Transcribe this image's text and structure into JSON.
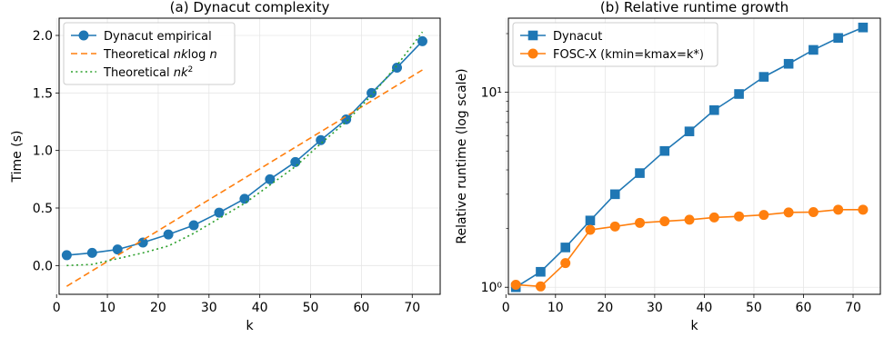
{
  "chart_data": [
    {
      "type": "line",
      "title": "(a) Dynacut complexity",
      "xlabel": "k",
      "ylabel": "Time (s)",
      "xlim": [
        0.5,
        75.5
      ],
      "ylim": [
        -0.25,
        2.15
      ],
      "xticks": [
        0,
        10,
        20,
        30,
        40,
        50,
        60,
        70
      ],
      "yticks": [
        "0.0",
        "0.5",
        "1.0",
        "1.5",
        "2.0"
      ],
      "ytick_values": [
        0,
        0.5,
        1.0,
        1.5,
        2.0
      ],
      "grid": true,
      "legend_position": "upper-left",
      "x": [
        2,
        7,
        12,
        17,
        22,
        27,
        32,
        37,
        42,
        47,
        52,
        57,
        62,
        67,
        72
      ],
      "series": [
        {
          "name": "Dynacut empirical",
          "name_html": "Dynacut empirical",
          "color": "#1f77b4",
          "style": "solid",
          "marker": "circle",
          "values": [
            0.09,
            0.11,
            0.14,
            0.2,
            0.27,
            0.35,
            0.46,
            0.58,
            0.75,
            0.9,
            1.09,
            1.27,
            1.5,
            1.72,
            1.95
          ]
        },
        {
          "name": "Theoretical nklog n",
          "name_html": "Theoretical <tspan font-style=\"italic\">nk</tspan>log <tspan font-style=\"italic\">n</tspan>",
          "color": "#ff7f0e",
          "style": "dashed",
          "marker": "none",
          "x": [
            2,
            72
          ],
          "values": [
            -0.18,
            1.7
          ]
        },
        {
          "name": "Theoretical nk^2",
          "name_html": "Theoretical <tspan font-style=\"italic\">nk</tspan><tspan baseline-shift=\"super\" font-size=\"9\">2</tspan>",
          "color": "#2ca02c",
          "style": "dotted",
          "marker": "none",
          "x": [
            2,
            7,
            12,
            17,
            22,
            27,
            32,
            37,
            42,
            47,
            52,
            57,
            62,
            67,
            72
          ],
          "values": [
            0.0,
            0.01,
            0.06,
            0.11,
            0.17,
            0.28,
            0.41,
            0.54,
            0.7,
            0.86,
            1.06,
            1.25,
            1.48,
            1.74,
            2.03
          ]
        }
      ]
    },
    {
      "type": "line",
      "title": "(b) Relative runtime growth",
      "xlabel": "k",
      "ylabel": "Relative runtime (log scale)",
      "yscale": "log",
      "xlim": [
        0.5,
        75.5
      ],
      "ylim": [
        0.92,
        24
      ],
      "xticks": [
        0,
        10,
        20,
        30,
        40,
        50,
        60,
        70
      ],
      "ymajor_ticks": [
        1,
        10
      ],
      "ymajor_labels": [
        "10⁰",
        "10¹"
      ],
      "grid": true,
      "legend_position": "upper-left",
      "x": [
        2,
        7,
        12,
        17,
        22,
        27,
        32,
        37,
        42,
        47,
        52,
        57,
        62,
        67,
        72
      ],
      "series": [
        {
          "name": "Dynacut",
          "name_html": "Dynacut",
          "color": "#1f77b4",
          "style": "solid",
          "marker": "square",
          "values": [
            1.0,
            1.2,
            1.6,
            2.2,
            3.0,
            3.85,
            5.0,
            6.3,
            8.1,
            9.8,
            12.0,
            14.0,
            16.5,
            19.0,
            21.5
          ]
        },
        {
          "name": "FOSC-X (kmin=kmax=k*)",
          "name_html": "FOSC-X (kmin=kmax=k*)",
          "color": "#ff7f0e",
          "style": "solid",
          "marker": "circle",
          "values": [
            1.03,
            1.01,
            1.33,
            1.97,
            2.05,
            2.14,
            2.18,
            2.22,
            2.28,
            2.31,
            2.35,
            2.42,
            2.43,
            2.5,
            2.5
          ]
        }
      ]
    }
  ]
}
